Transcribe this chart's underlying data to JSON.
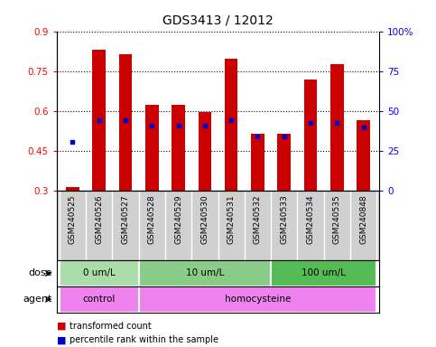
{
  "title": "GDS3413 / 12012",
  "samples": [
    "GSM240525",
    "GSM240526",
    "GSM240527",
    "GSM240528",
    "GSM240529",
    "GSM240530",
    "GSM240531",
    "GSM240532",
    "GSM240533",
    "GSM240534",
    "GSM240535",
    "GSM240848"
  ],
  "red_values": [
    0.315,
    0.83,
    0.815,
    0.625,
    0.625,
    0.595,
    0.795,
    0.515,
    0.515,
    0.72,
    0.775,
    0.565
  ],
  "blue_values": [
    0.485,
    0.565,
    0.565,
    0.545,
    0.545,
    0.545,
    0.565,
    0.505,
    0.505,
    0.555,
    0.555,
    0.54
  ],
  "ylim_left": [
    0.3,
    0.9
  ],
  "ylim_right": [
    0,
    100
  ],
  "yticks_left": [
    0.3,
    0.45,
    0.6,
    0.75,
    0.9
  ],
  "yticks_right": [
    0,
    25,
    50,
    75,
    100
  ],
  "ytick_labels_left": [
    "0.3",
    "0.45",
    "0.6",
    "0.75",
    "0.9"
  ],
  "ytick_labels_right": [
    "0",
    "25",
    "50",
    "75",
    "100%"
  ],
  "bar_color": "#CC0000",
  "dot_color": "#0000CC",
  "xlabels_bg": "#D0D0D0",
  "dose_colors": [
    "#AADDAA",
    "#88CC88",
    "#55BB55"
  ],
  "agent_color": "#EE82EE",
  "dose_labels": [
    "0 um/L",
    "10 um/L",
    "100 um/L"
  ],
  "dose_starts": [
    0,
    3,
    8
  ],
  "dose_ends": [
    3,
    8,
    12
  ],
  "agent_labels": [
    "control",
    "homocysteine"
  ],
  "agent_starts": [
    0,
    3
  ],
  "agent_ends": [
    3,
    12
  ],
  "dose_row_label": "dose",
  "agent_row_label": "agent",
  "legend_red": "transformed count",
  "legend_blue": "percentile rank within the sample",
  "bar_width": 0.5
}
